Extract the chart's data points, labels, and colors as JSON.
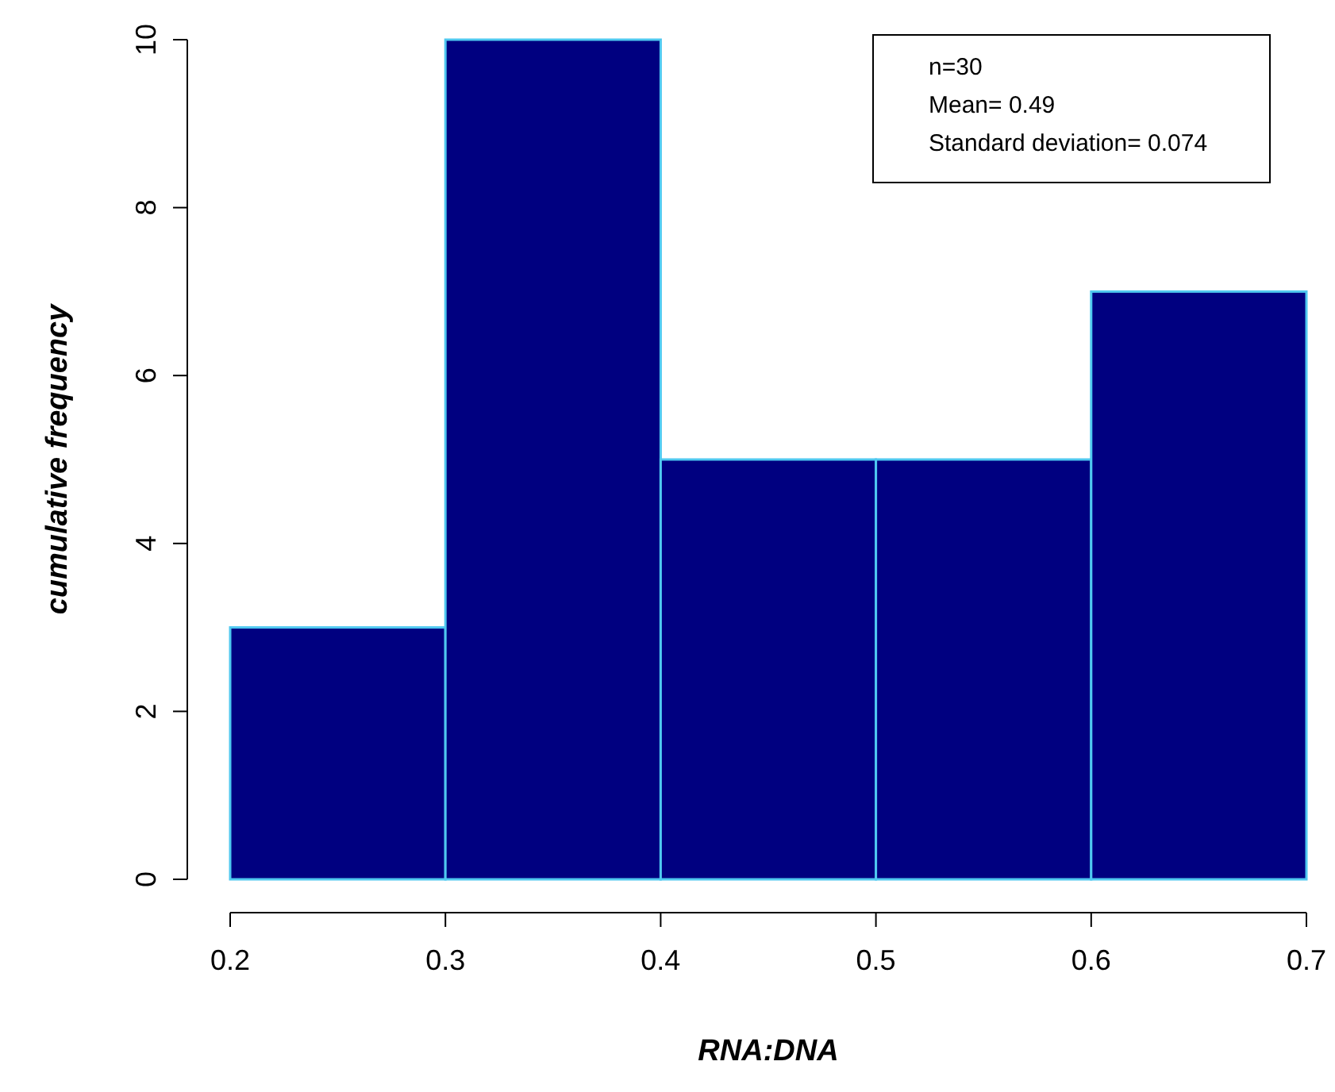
{
  "chart_data": {
    "type": "histogram",
    "xlabel": "RNA:DNA",
    "ylabel": "cumulative frequency",
    "bins": [
      0.2,
      0.3,
      0.4,
      0.5,
      0.6,
      0.7
    ],
    "values": [
      3,
      10,
      5,
      5,
      7
    ],
    "color": "#000080",
    "xlim": [
      0.2,
      0.7
    ],
    "xticks": [
      0.2,
      0.3,
      0.4,
      0.5,
      0.6,
      0.7
    ],
    "ylim": [
      0,
      10
    ],
    "yticks": [
      0,
      2,
      4,
      6,
      8,
      10
    ],
    "annotations": [
      "n=30",
      "Mean= 0.49",
      "Standard deviation= 0.074"
    ],
    "grid": false
  }
}
